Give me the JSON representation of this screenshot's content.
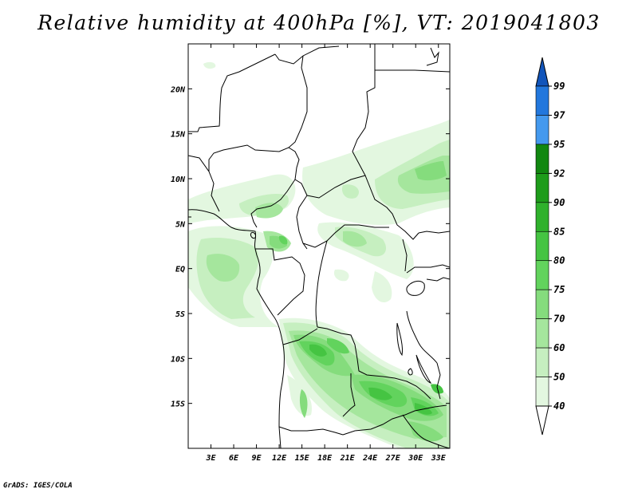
{
  "title": "Relative humidity at 400hPa [%], VT: 2019041803",
  "credit": "GrADS: IGES/COLA",
  "map": {
    "lon_range": [
      0,
      34.5
    ],
    "lat_range": [
      -20,
      25
    ],
    "lat_ticks": [
      {
        "value": 20,
        "label": "20N"
      },
      {
        "value": 15,
        "label": "15N"
      },
      {
        "value": 10,
        "label": "10N"
      },
      {
        "value": 5,
        "label": "5N"
      },
      {
        "value": 0,
        "label": "EQ"
      },
      {
        "value": -5,
        "label": "5S"
      },
      {
        "value": -10,
        "label": "10S"
      },
      {
        "value": -15,
        "label": "15S"
      }
    ],
    "lon_ticks": [
      {
        "value": 3,
        "label": "3E"
      },
      {
        "value": 6,
        "label": "6E"
      },
      {
        "value": 9,
        "label": "9E"
      },
      {
        "value": 12,
        "label": "12E"
      },
      {
        "value": 15,
        "label": "15E"
      },
      {
        "value": 18,
        "label": "18E"
      },
      {
        "value": 21,
        "label": "21E"
      },
      {
        "value": 24,
        "label": "24E"
      },
      {
        "value": 27,
        "label": "27E"
      },
      {
        "value": 30,
        "label": "30E"
      },
      {
        "value": 33,
        "label": "33E"
      }
    ]
  },
  "colorbar": {
    "levels": [
      "99",
      "97",
      "95",
      "92",
      "90",
      "85",
      "80",
      "75",
      "70",
      "60",
      "50",
      "40"
    ],
    "colors": [
      "#ffffff",
      "#e3f7e0",
      "#c6efc0",
      "#a5e69d",
      "#85dc7d",
      "#62d35d",
      "#45c442",
      "#2fb12c",
      "#1e9c1b",
      "#118710",
      "#4499ee",
      "#2277dd",
      "#1155bb"
    ]
  }
}
